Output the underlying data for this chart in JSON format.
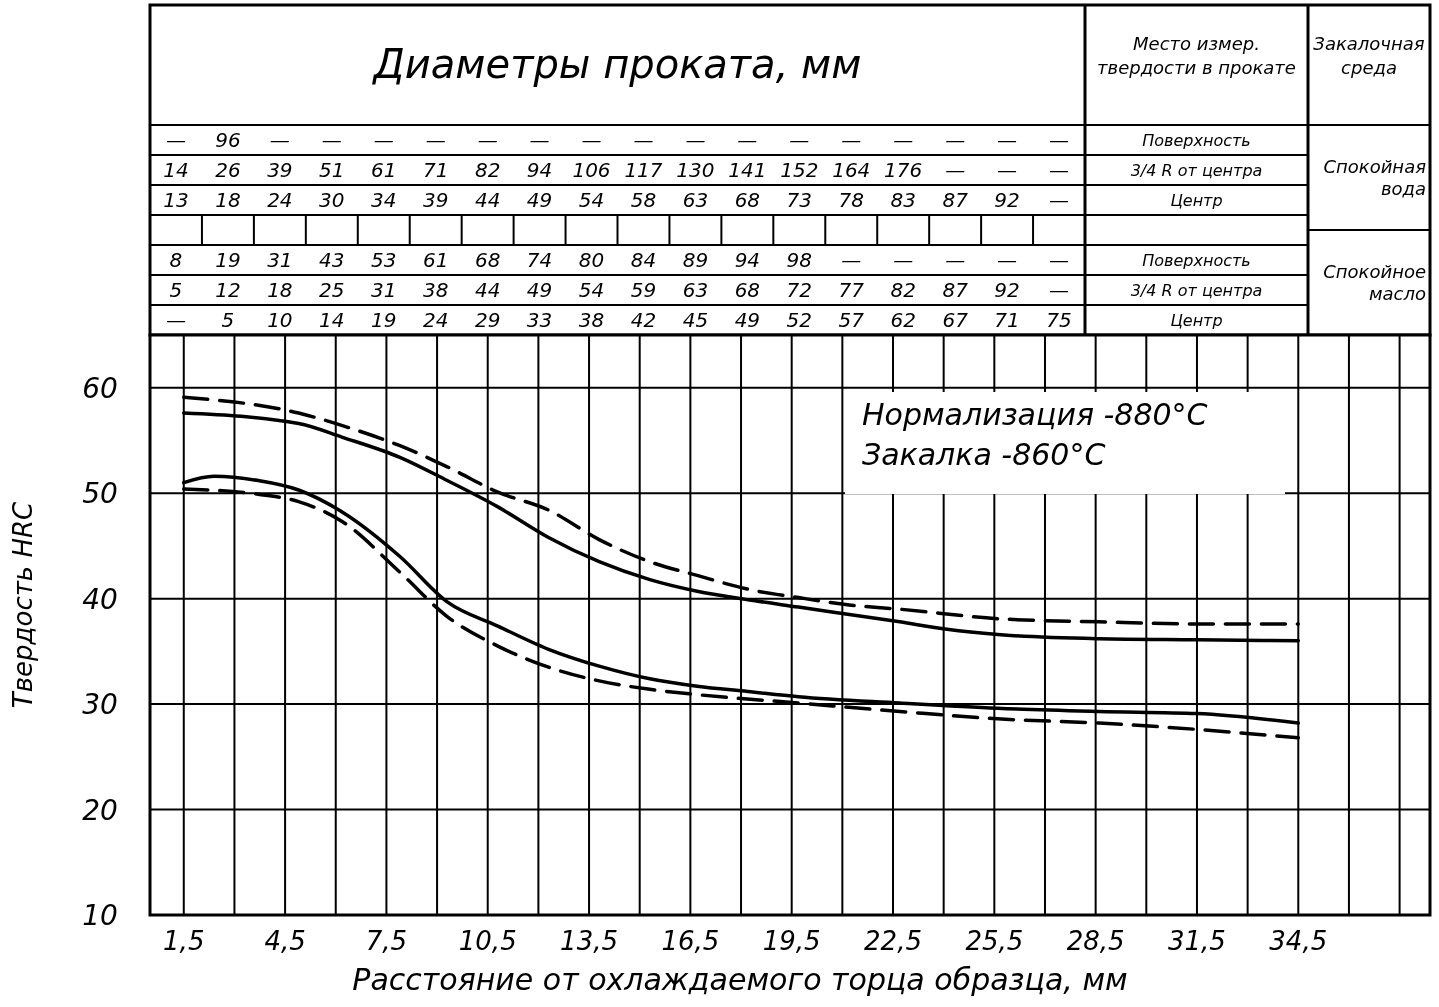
{
  "chart_data": [
    {
      "type": "other",
      "title": "Диаметры проката, мм",
      "annotations": [
        "Место измер. твердости в прокате",
        "Закалочная среда",
        "Спокойная вода",
        "Спокойное масло",
        "Поверхность",
        "3/4 R от центра",
        "Центр",
        "Поверхность",
        "3/4 R от центра",
        "Центр",
        "— 96 — — — — — — — — — — — — — — — —",
        "14 26 39 51 61 71 82 94 106 117 130 141 152 164 176 — — —",
        "13 18 24 30 34 39 44 49 54 58 63 68 73 78 83 87 92 —",
        "8 19 31 43 53 61 68 74 80 84 89 94 98 — — — — —",
        "5 12 18 25 31 38 44 49 54 59 63 68 72 77 82 87 92 —",
        "— 5 10 14 19 24 29 33 38 42 45 49 52 57 62 67 71 75"
      ]
    },
    {
      "type": "line",
      "xlabel": "Расстояние от охлаждаемого торца образца, мм",
      "ylabel": "Твердость HRC",
      "xlim": [
        0.5,
        38.4
      ],
      "ylim": [
        10,
        65
      ],
      "xticks": [
        {
          "value": 1.5,
          "label": "1,5"
        },
        {
          "value": 3,
          "label": null
        },
        {
          "value": 4.5,
          "label": "4,5"
        },
        {
          "value": 6,
          "label": null
        },
        {
          "value": 7.5,
          "label": "7,5"
        },
        {
          "value": 9,
          "label": null
        },
        {
          "value": 10.5,
          "label": "10,5"
        },
        {
          "value": 12,
          "label": null
        },
        {
          "value": 13.5,
          "label": "13,5"
        },
        {
          "value": 15,
          "label": null
        },
        {
          "value": 16.5,
          "label": "16,5"
        },
        {
          "value": 18,
          "label": null
        },
        {
          "value": 19.5,
          "label": "19,5"
        },
        {
          "value": 21,
          "label": null
        },
        {
          "value": 22.5,
          "label": "22,5"
        },
        {
          "value": 24,
          "label": null
        },
        {
          "value": 25.5,
          "label": "25,5"
        },
        {
          "value": 27,
          "label": null
        },
        {
          "value": 28.5,
          "label": "28,5"
        },
        {
          "value": 30,
          "label": null
        },
        {
          "value": 31.5,
          "label": "31,5"
        },
        {
          "value": 33,
          "label": null
        },
        {
          "value": 34.5,
          "label": "34,5"
        },
        {
          "value": 36,
          "label": null
        },
        {
          "value": 37.5,
          "label": null
        }
      ],
      "yticks": [
        10,
        20,
        30,
        40,
        50,
        60
      ],
      "grid": true,
      "marker": "none",
      "annotations": [
        "Нормализация -880°C",
        "Закалка -860°C"
      ],
      "series": [
        {
          "color": "#000000",
          "line_style": "solid",
          "x": [
            1.5,
            4.9,
            6.2,
            7.9,
            9.3,
            10.8,
            12.3,
            13.8,
            15.3,
            16.7,
            18.2,
            19.7,
            22.7,
            24.1,
            25.6,
            28.6,
            31.5,
            34.5
          ],
          "values": [
            57.6,
            56.6,
            55.3,
            53.4,
            51.2,
            48.7,
            45.8,
            43.5,
            41.8,
            40.7,
            39.9,
            39.2,
            37.8,
            37.1,
            36.6,
            36.2,
            36.1,
            36.0
          ]
        },
        {
          "color": "#000000",
          "line_style": "dashed",
          "x": [
            1.5,
            4.9,
            6.4,
            7.9,
            9.3,
            10.8,
            12.3,
            13.8,
            15.3,
            16.7,
            18.2,
            19.7,
            21.2,
            22.7,
            25.6,
            28.6,
            31.5,
            34.5
          ],
          "values": [
            59.1,
            57.6,
            56.2,
            54.5,
            52.5,
            50.1,
            48.4,
            45.6,
            43.5,
            42.2,
            40.9,
            40.1,
            39.4,
            39.0,
            38.1,
            37.8,
            37.6,
            37.6
          ]
        },
        {
          "color": "#000000",
          "line_style": "solid",
          "x": [
            1.5,
            2.4,
            3.7,
            4.9,
            6.2,
            7.9,
            9.3,
            10.8,
            12.3,
            13.8,
            15.3,
            16.7,
            18.2,
            19.7,
            22.7,
            25.6,
            28.6,
            31.5,
            34.5
          ],
          "values": [
            51.0,
            51.6,
            51.2,
            50.3,
            48.2,
            44.0,
            39.7,
            37.4,
            35.2,
            33.6,
            32.4,
            31.7,
            31.2,
            30.7,
            30.1,
            29.6,
            29.3,
            29.1,
            28.2
          ]
        },
        {
          "color": "#000000",
          "line_style": "dashed",
          "x": [
            1.5,
            3.7,
            4.9,
            6.2,
            7.9,
            9.3,
            10.8,
            12.3,
            13.8,
            15.3,
            16.7,
            19.7,
            22.7,
            25.6,
            28.6,
            31.5,
            34.5
          ],
          "values": [
            50.4,
            49.9,
            49.2,
            47.3,
            42.5,
            38.3,
            35.5,
            33.5,
            32.2,
            31.4,
            30.9,
            30.1,
            29.3,
            28.6,
            28.2,
            27.6,
            26.8
          ]
        }
      ]
    }
  ]
}
